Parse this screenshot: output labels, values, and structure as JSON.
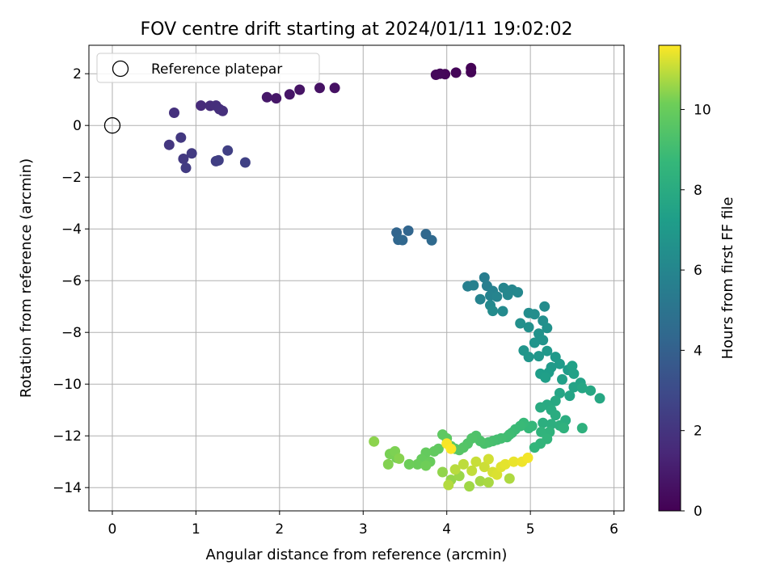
{
  "chart_data": {
    "type": "scatter",
    "title": "FOV centre drift starting at 2024/01/11 19:02:02",
    "xlabel": "Angular distance from reference (arcmin)",
    "ylabel": "Rotation from reference (arcmin)",
    "xlim": [
      -0.28,
      6.12
    ],
    "ylim": [
      -14.9,
      3.1
    ],
    "xticks": [
      0,
      1,
      2,
      3,
      4,
      5,
      6
    ],
    "yticks": [
      2,
      0,
      -2,
      -4,
      -6,
      -8,
      -10,
      -12,
      -14
    ],
    "grid": true,
    "colormap": "viridis",
    "legend": {
      "location": "upper-left",
      "entries": [
        {
          "label": "Reference platepar",
          "marker": "open-circle"
        }
      ]
    },
    "reference_point": {
      "x": 0,
      "y": 0
    },
    "colorbar": {
      "label": "Hours from first FF file",
      "range": [
        0,
        11.6
      ],
      "ticks": [
        0,
        2,
        4,
        6,
        8,
        10
      ]
    },
    "series": [
      {
        "points": [
          [
            4.29,
            2.22,
            0.05
          ],
          [
            4.29,
            2.06,
            0.1
          ],
          [
            4.11,
            2.04,
            0.15
          ],
          [
            3.98,
            1.98,
            0.2
          ],
          [
            3.92,
            2.0,
            0.25
          ],
          [
            3.87,
            1.96,
            0.3
          ],
          [
            2.66,
            1.45,
            0.6
          ],
          [
            2.48,
            1.45,
            0.65
          ],
          [
            2.24,
            1.38,
            0.7
          ],
          [
            2.12,
            1.2,
            0.75
          ],
          [
            1.96,
            1.05,
            0.8
          ],
          [
            1.85,
            1.09,
            0.85
          ],
          [
            1.06,
            0.77,
            1.6
          ],
          [
            1.17,
            0.76,
            1.65
          ],
          [
            1.24,
            0.77,
            1.7
          ],
          [
            1.28,
            0.63,
            1.75
          ],
          [
            1.32,
            0.56,
            1.8
          ],
          [
            0.74,
            0.49,
            1.85
          ],
          [
            0.68,
            -0.75,
            2.1
          ],
          [
            0.82,
            -0.47,
            2.15
          ],
          [
            0.85,
            -1.29,
            2.2
          ],
          [
            0.95,
            -1.08,
            2.25
          ],
          [
            0.88,
            -1.64,
            2.3
          ],
          [
            1.24,
            -1.38,
            2.4
          ],
          [
            1.27,
            -1.35,
            2.45
          ],
          [
            1.38,
            -0.97,
            2.5
          ],
          [
            1.59,
            -1.43,
            2.55
          ],
          [
            3.4,
            -4.14,
            4.2
          ],
          [
            3.54,
            -4.07,
            4.25
          ],
          [
            3.42,
            -4.42,
            4.3
          ],
          [
            3.47,
            -4.43,
            4.35
          ],
          [
            3.75,
            -4.2,
            4.4
          ],
          [
            3.82,
            -4.44,
            4.45
          ],
          [
            4.45,
            -5.88,
            5.5
          ],
          [
            4.48,
            -6.2,
            5.6
          ],
          [
            4.25,
            -6.22,
            5.65
          ],
          [
            4.32,
            -6.18,
            5.7
          ],
          [
            4.55,
            -6.4,
            5.75
          ],
          [
            4.52,
            -6.58,
            5.8
          ],
          [
            4.4,
            -6.72,
            5.85
          ],
          [
            4.6,
            -6.62,
            5.9
          ],
          [
            4.68,
            -6.28,
            5.95
          ],
          [
            4.78,
            -6.35,
            6.0
          ],
          [
            4.73,
            -6.55,
            6.05
          ],
          [
            4.85,
            -6.45,
            6.1
          ],
          [
            4.52,
            -6.95,
            6.15
          ],
          [
            4.67,
            -7.18,
            6.2
          ],
          [
            4.55,
            -7.17,
            6.25
          ],
          [
            5.17,
            -7.0,
            6.3
          ],
          [
            4.98,
            -7.25,
            6.35
          ],
          [
            5.05,
            -7.3,
            6.4
          ],
          [
            5.15,
            -7.55,
            6.45
          ],
          [
            4.88,
            -7.65,
            6.5
          ],
          [
            4.98,
            -7.8,
            6.55
          ],
          [
            5.2,
            -7.83,
            6.6
          ],
          [
            5.1,
            -8.05,
            6.65
          ],
          [
            5.15,
            -8.3,
            6.7
          ],
          [
            5.05,
            -8.4,
            6.75
          ],
          [
            4.92,
            -8.7,
            6.8
          ],
          [
            4.98,
            -8.95,
            6.85
          ],
          [
            5.1,
            -8.92,
            6.9
          ],
          [
            5.2,
            -8.72,
            6.95
          ],
          [
            5.3,
            -8.95,
            7.0
          ],
          [
            5.25,
            -9.35,
            7.05
          ],
          [
            5.35,
            -9.22,
            7.1
          ],
          [
            5.45,
            -9.45,
            7.15
          ],
          [
            5.22,
            -9.55,
            7.2
          ],
          [
            5.12,
            -9.6,
            7.25
          ],
          [
            5.18,
            -9.75,
            7.3
          ],
          [
            5.38,
            -9.82,
            7.35
          ],
          [
            5.5,
            -9.3,
            7.4
          ],
          [
            5.52,
            -9.6,
            7.45
          ],
          [
            5.6,
            -9.95,
            7.5
          ],
          [
            5.52,
            -10.12,
            7.55
          ],
          [
            5.47,
            -10.45,
            7.6
          ],
          [
            5.35,
            -10.35,
            7.65
          ],
          [
            5.62,
            -10.15,
            7.7
          ],
          [
            5.72,
            -10.25,
            7.75
          ],
          [
            5.83,
            -10.55,
            7.8
          ],
          [
            5.3,
            -10.65,
            7.85
          ],
          [
            5.2,
            -10.8,
            7.9
          ],
          [
            5.12,
            -10.9,
            7.95
          ],
          [
            5.25,
            -11.0,
            8.0
          ],
          [
            5.3,
            -11.2,
            8.05
          ],
          [
            5.42,
            -11.4,
            8.1
          ],
          [
            5.15,
            -11.5,
            8.15
          ],
          [
            5.25,
            -11.55,
            8.2
          ],
          [
            5.35,
            -11.6,
            8.25
          ],
          [
            5.62,
            -11.7,
            8.3
          ],
          [
            5.4,
            -11.7,
            8.35
          ],
          [
            5.23,
            -11.85,
            8.4
          ],
          [
            5.13,
            -11.85,
            8.45
          ],
          [
            5.2,
            -12.12,
            8.5
          ],
          [
            5.12,
            -12.3,
            8.55
          ],
          [
            5.05,
            -12.45,
            8.6
          ],
          [
            5.02,
            -11.62,
            8.65
          ],
          [
            4.98,
            -11.7,
            8.7
          ],
          [
            4.92,
            -11.5,
            8.75
          ],
          [
            4.88,
            -11.62,
            8.8
          ],
          [
            4.82,
            -11.75,
            8.85
          ],
          [
            4.78,
            -11.88,
            8.9
          ],
          [
            4.75,
            -11.95,
            8.95
          ],
          [
            4.72,
            -12.05,
            9.0
          ],
          [
            4.65,
            -12.1,
            9.05
          ],
          [
            4.6,
            -12.15,
            9.1
          ],
          [
            4.55,
            -12.2,
            9.15
          ],
          [
            4.5,
            -12.25,
            9.2
          ],
          [
            4.45,
            -12.3,
            9.25
          ],
          [
            4.4,
            -12.2,
            9.3
          ],
          [
            4.35,
            -12.0,
            9.35
          ],
          [
            4.3,
            -12.1,
            9.4
          ],
          [
            4.25,
            -12.3,
            9.45
          ],
          [
            4.2,
            -12.45,
            9.5
          ],
          [
            4.15,
            -12.55,
            9.55
          ],
          [
            4.1,
            -12.5,
            9.6
          ],
          [
            4.05,
            -12.4,
            9.65
          ],
          [
            4.0,
            -12.1,
            9.7
          ],
          [
            3.95,
            -11.95,
            9.75
          ],
          [
            3.9,
            -12.5,
            9.8
          ],
          [
            3.85,
            -12.6,
            9.85
          ],
          [
            3.75,
            -12.65,
            9.9
          ],
          [
            3.7,
            -12.9,
            9.95
          ],
          [
            3.8,
            -13.0,
            10.0
          ],
          [
            3.65,
            -13.1,
            10.05
          ],
          [
            3.55,
            -13.1,
            10.1
          ],
          [
            3.75,
            -13.15,
            10.15
          ],
          [
            3.4,
            -12.85,
            10.2
          ],
          [
            3.32,
            -12.7,
            10.25
          ],
          [
            3.38,
            -12.6,
            10.3
          ],
          [
            3.3,
            -13.1,
            10.35
          ],
          [
            3.43,
            -12.88,
            10.4
          ],
          [
            3.13,
            -12.22,
            10.45
          ],
          [
            3.95,
            -13.4,
            10.5
          ],
          [
            4.05,
            -13.7,
            10.55
          ],
          [
            4.15,
            -13.55,
            10.6
          ],
          [
            4.27,
            -13.95,
            10.65
          ],
          [
            4.4,
            -13.75,
            10.7
          ],
          [
            4.5,
            -13.8,
            10.75
          ],
          [
            4.75,
            -13.65,
            10.8
          ],
          [
            4.02,
            -13.9,
            10.85
          ],
          [
            4.1,
            -13.3,
            10.9
          ],
          [
            4.2,
            -13.1,
            10.95
          ],
          [
            4.3,
            -13.35,
            11.0
          ],
          [
            4.35,
            -13.0,
            11.05
          ],
          [
            4.45,
            -13.2,
            11.1
          ],
          [
            4.5,
            -12.9,
            11.15
          ],
          [
            4.55,
            -13.4,
            11.2
          ],
          [
            4.6,
            -13.5,
            11.25
          ],
          [
            4.65,
            -13.2,
            11.3
          ],
          [
            4.7,
            -13.1,
            11.35
          ],
          [
            4.8,
            -13.0,
            11.4
          ],
          [
            4.9,
            -13.0,
            11.45
          ],
          [
            4.97,
            -12.85,
            11.5
          ],
          [
            4.0,
            -12.3,
            11.55
          ],
          [
            4.05,
            -12.5,
            11.6
          ]
        ]
      }
    ]
  }
}
